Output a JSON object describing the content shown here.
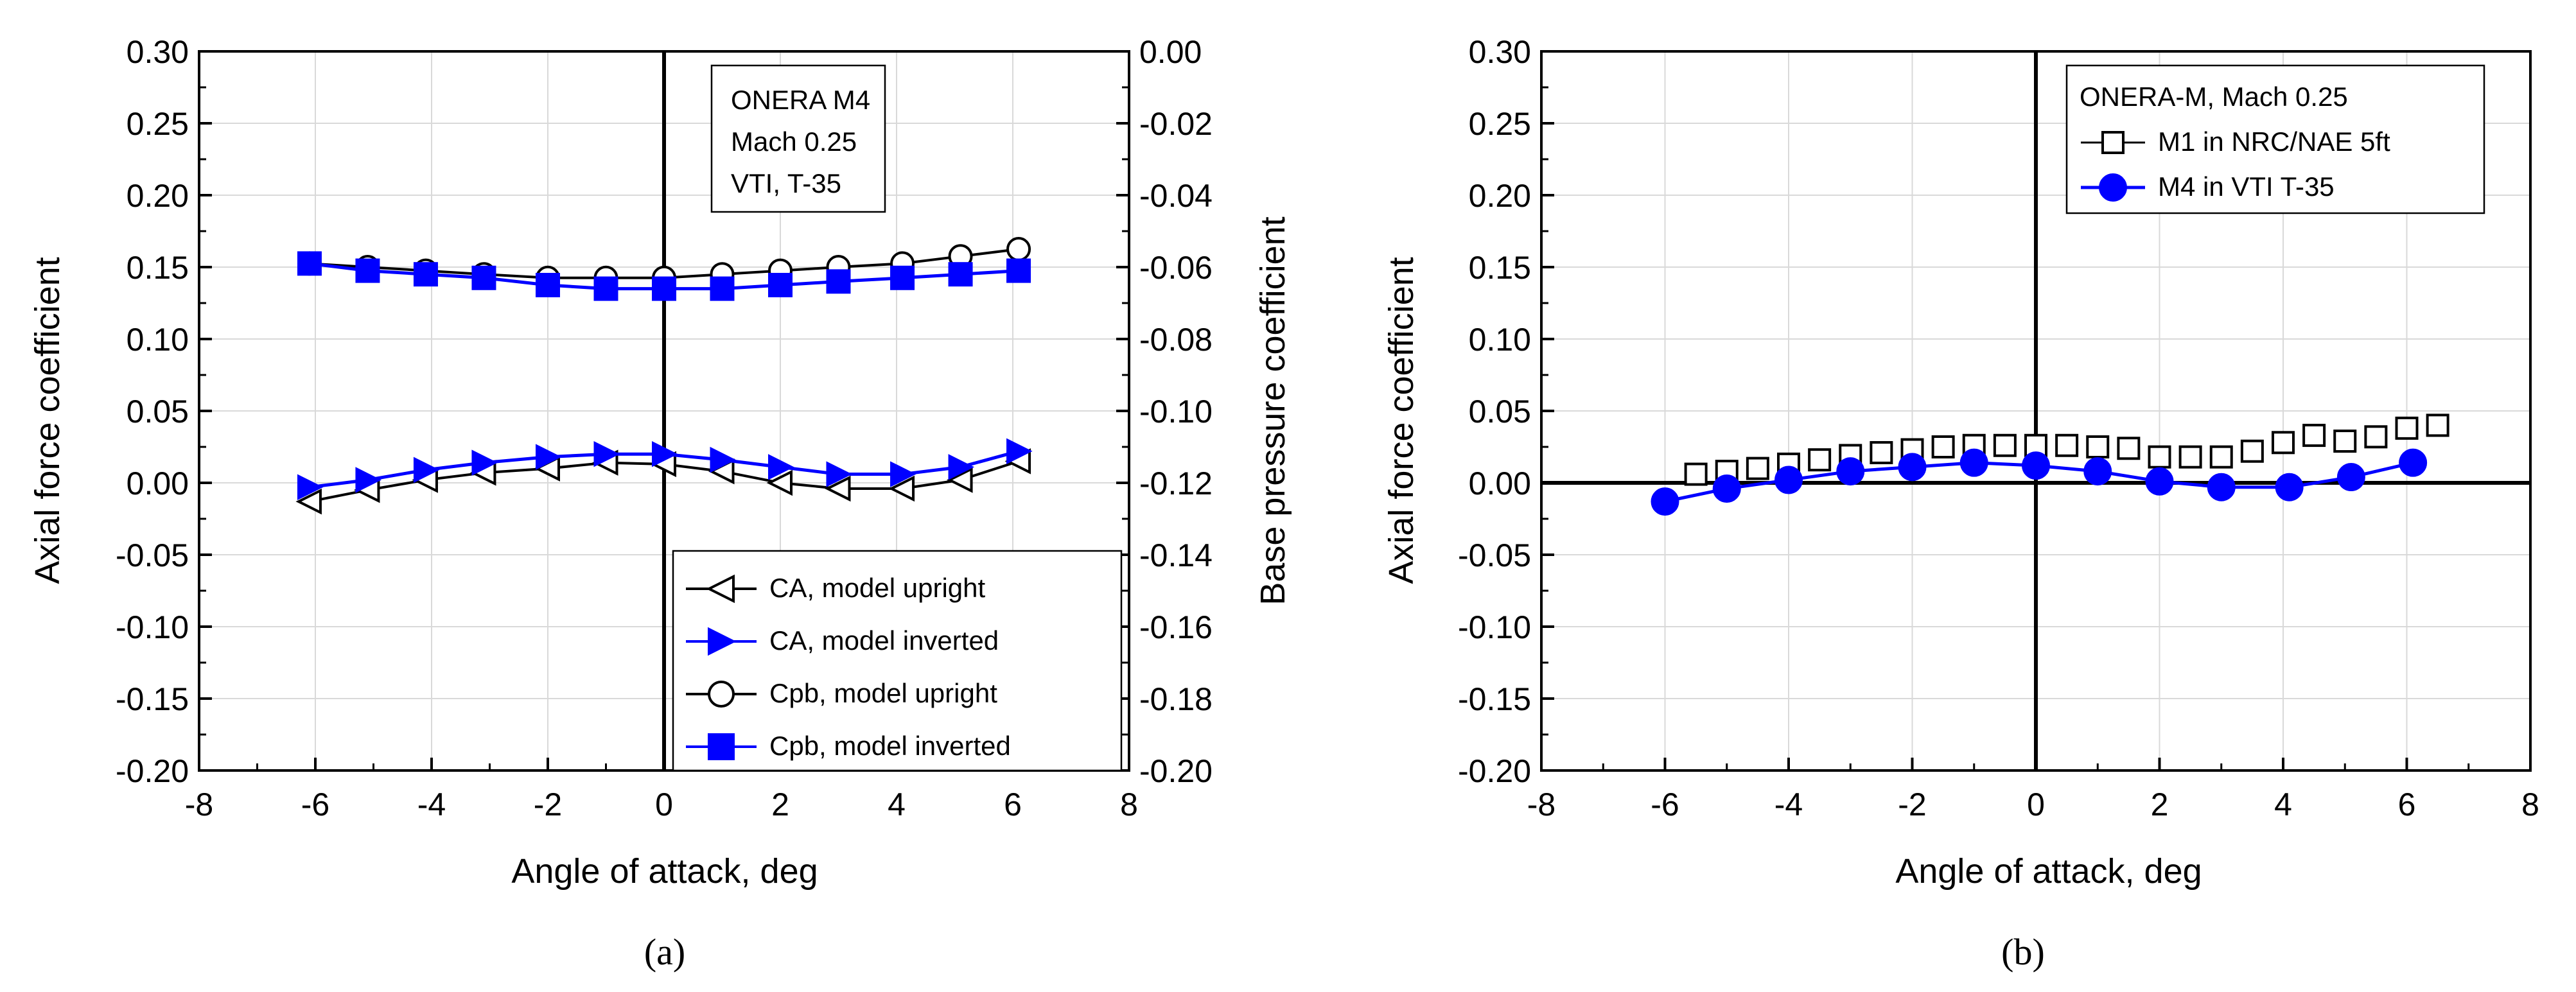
{
  "figure": {
    "caption_a": "(a)",
    "caption_b": "(b)"
  },
  "colors": {
    "black": "#000000",
    "blue": "#0000ff",
    "grid": "#d9d9d9"
  },
  "chart_data": [
    {
      "id": "a",
      "type": "line",
      "xlabel": "Angle of attack, deg",
      "ylabel": "Axial force coefficient",
      "y2label": "Base pressure coefficient",
      "xlim": [
        -8,
        8
      ],
      "ylim": [
        -0.2,
        0.3
      ],
      "y2lim": [
        -0.2,
        0.0
      ],
      "xticks": [
        "-8",
        "-6",
        "-4",
        "-2",
        "0",
        "2",
        "4",
        "6",
        "8"
      ],
      "yticks": [
        "-0.20",
        "-0.15",
        "-0.10",
        "-0.05",
        "0.00",
        "0.05",
        "0.10",
        "0.15",
        "0.20",
        "0.25",
        "0.30"
      ],
      "y2ticks": [
        "-0.20",
        "-0.18",
        "-0.16",
        "-0.14",
        "-0.12",
        "-0.10",
        "-0.08",
        "-0.06",
        "-0.04",
        "-0.02",
        "0.00"
      ],
      "grid": true,
      "annotation": [
        "ONERA M4",
        "Mach 0.25",
        "VTI, T-35"
      ],
      "legend_position": "bottom-right",
      "series": [
        {
          "name": "CA, model upright",
          "axis": "left",
          "marker": "triangle-left",
          "color": "#000000",
          "filled": false,
          "x": [
            -6.1,
            -5.1,
            -4.1,
            -3.1,
            -2.0,
            -1.0,
            0.0,
            1.0,
            2.0,
            3.0,
            4.1,
            5.1,
            6.1
          ],
          "y": [
            -0.013,
            -0.005,
            0.002,
            0.007,
            0.01,
            0.014,
            0.013,
            0.008,
            0.0,
            -0.004,
            -0.004,
            0.002,
            0.015
          ]
        },
        {
          "name": "CA, model inverted",
          "axis": "left",
          "marker": "triangle-right",
          "color": "#0000ff",
          "filled": true,
          "x": [
            -6.1,
            -5.1,
            -4.1,
            -3.1,
            -2.0,
            -1.0,
            0.0,
            1.0,
            2.0,
            3.0,
            4.1,
            5.1,
            6.1
          ],
          "y": [
            -0.003,
            0.002,
            0.009,
            0.014,
            0.018,
            0.02,
            0.02,
            0.016,
            0.011,
            0.006,
            0.006,
            0.011,
            0.022
          ]
        },
        {
          "name": "Cpb, model upright",
          "axis": "right",
          "marker": "circle",
          "color": "#000000",
          "filled": false,
          "x": [
            -6.1,
            -5.1,
            -4.1,
            -3.1,
            -2.0,
            -1.0,
            0.0,
            1.0,
            2.0,
            3.0,
            4.1,
            5.1,
            6.1
          ],
          "y": [
            -0.059,
            -0.06,
            -0.061,
            -0.062,
            -0.063,
            -0.063,
            -0.063,
            -0.062,
            -0.061,
            -0.06,
            -0.059,
            -0.057,
            -0.055
          ]
        },
        {
          "name": "Cpb, model inverted",
          "axis": "right",
          "marker": "square",
          "color": "#0000ff",
          "filled": true,
          "x": [
            -6.1,
            -5.1,
            -4.1,
            -3.1,
            -2.0,
            -1.0,
            0.0,
            1.0,
            2.0,
            3.0,
            4.1,
            5.1,
            6.1
          ],
          "y": [
            -0.059,
            -0.061,
            -0.062,
            -0.063,
            -0.065,
            -0.066,
            -0.066,
            -0.066,
            -0.065,
            -0.064,
            -0.063,
            -0.062,
            -0.061
          ]
        }
      ]
    },
    {
      "id": "b",
      "type": "line",
      "xlabel": "Angle of attack, deg",
      "ylabel": "Axial force coefficient",
      "xlim": [
        -8,
        8
      ],
      "ylim": [
        -0.2,
        0.3
      ],
      "xticks": [
        "-8",
        "-6",
        "-4",
        "-2",
        "0",
        "2",
        "4",
        "6",
        "8"
      ],
      "yticks": [
        "-0.20",
        "-0.15",
        "-0.10",
        "-0.05",
        "0.00",
        "0.05",
        "0.10",
        "0.15",
        "0.20",
        "0.25",
        "0.30"
      ],
      "grid": true,
      "legend_title": "ONERA-M, Mach 0.25",
      "legend_position": "top-right",
      "series": [
        {
          "name": "M1 in NRC/NAE 5ft",
          "marker": "square",
          "color": "#000000",
          "filled": false,
          "line": false,
          "x": [
            -5.5,
            -5.0,
            -4.5,
            -4.0,
            -3.5,
            -3.0,
            -2.5,
            -2.0,
            -1.5,
            -1.0,
            -0.5,
            0.0,
            0.5,
            1.0,
            1.5,
            2.0,
            2.5,
            3.0,
            3.5,
            4.0,
            4.5,
            5.0,
            5.5,
            6.0,
            6.5
          ],
          "y": [
            0.006,
            0.008,
            0.01,
            0.013,
            0.016,
            0.019,
            0.021,
            0.023,
            0.025,
            0.026,
            0.026,
            0.026,
            0.026,
            0.025,
            0.024,
            0.018,
            0.018,
            0.018,
            0.022,
            0.028,
            0.033,
            0.029,
            0.032,
            0.038,
            0.04
          ]
        },
        {
          "name": "M4 in VTI T-35",
          "marker": "circle",
          "color": "#0000ff",
          "filled": true,
          "line": true,
          "x": [
            -6.0,
            -5.0,
            -4.0,
            -3.0,
            -2.0,
            -1.0,
            0.0,
            1.0,
            2.0,
            3.0,
            4.1,
            5.1,
            6.1
          ],
          "y": [
            -0.013,
            -0.004,
            0.002,
            0.008,
            0.011,
            0.014,
            0.012,
            0.008,
            0.001,
            -0.003,
            -0.003,
            0.004,
            0.014
          ]
        }
      ]
    }
  ]
}
